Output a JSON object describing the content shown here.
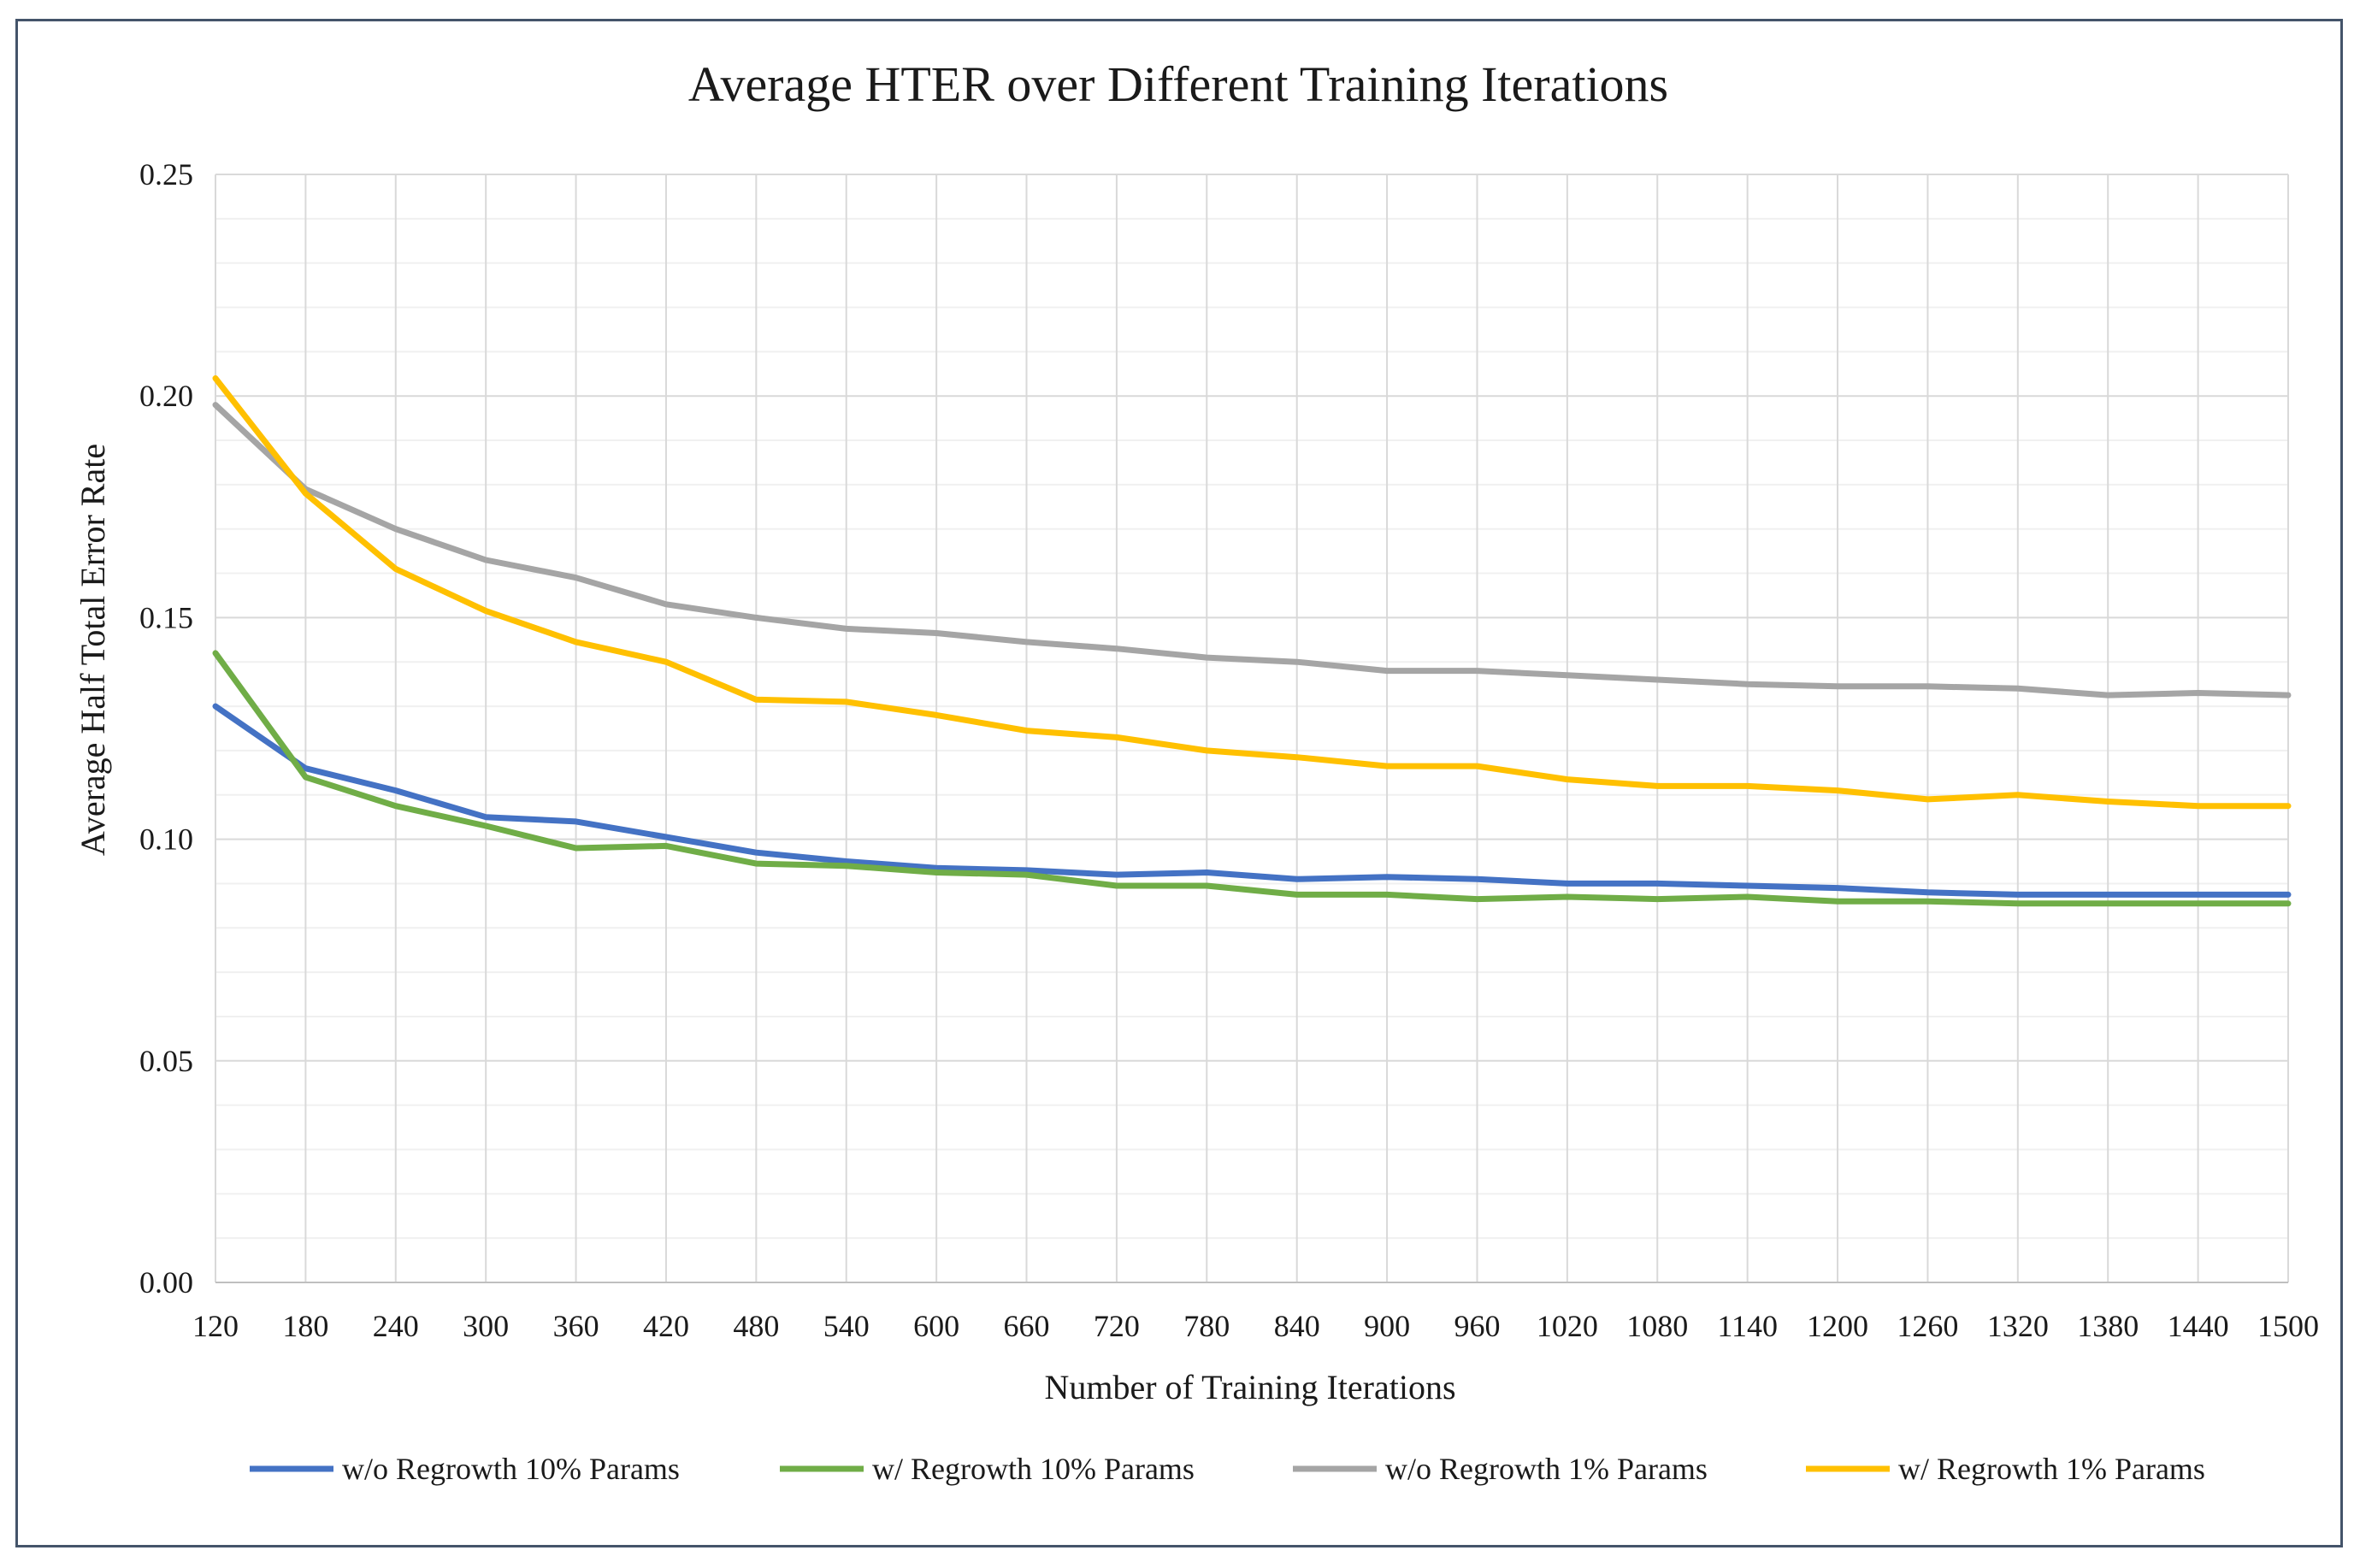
{
  "chart_data": {
    "type": "line",
    "title": "Average HTER over Different Training Iterations",
    "xlabel": "Number of Training Iterations",
    "ylabel": "Average Half Total Error Rate",
    "x": [
      120,
      180,
      240,
      300,
      360,
      420,
      480,
      540,
      600,
      660,
      720,
      780,
      840,
      900,
      960,
      1020,
      1080,
      1140,
      1200,
      1260,
      1320,
      1380,
      1440,
      1500
    ],
    "ylim": [
      0,
      0.25
    ],
    "yticks": [
      "0.00",
      "0.05",
      "0.10",
      "0.15",
      "0.20",
      "0.25"
    ],
    "grid": true,
    "legend_position": "bottom",
    "series": [
      {
        "name": "w/o Regrowth 10% Params",
        "color": "#4472c4",
        "values": [
          0.13,
          0.116,
          0.111,
          0.105,
          0.104,
          0.1005,
          0.097,
          0.095,
          0.0935,
          0.093,
          0.092,
          0.0925,
          0.091,
          0.0915,
          0.091,
          0.09,
          0.09,
          0.0895,
          0.089,
          0.088,
          0.0875,
          0.0875,
          0.0875,
          0.0875
        ]
      },
      {
        "name": "w/ Regrowth 10% Params",
        "color": "#70ad47",
        "values": [
          0.142,
          0.114,
          0.1075,
          0.103,
          0.098,
          0.0985,
          0.0945,
          0.094,
          0.0925,
          0.092,
          0.0895,
          0.0895,
          0.0875,
          0.0875,
          0.0865,
          0.087,
          0.0865,
          0.087,
          0.086,
          0.086,
          0.0855,
          0.0855,
          0.0855,
          0.0855
        ]
      },
      {
        "name": "w/o Regrowth 1% Params",
        "color": "#a5a5a5",
        "values": [
          0.198,
          0.179,
          0.17,
          0.163,
          0.159,
          0.153,
          0.15,
          0.1475,
          0.1465,
          0.1445,
          0.143,
          0.141,
          0.14,
          0.138,
          0.138,
          0.137,
          0.136,
          0.135,
          0.1345,
          0.1345,
          0.134,
          0.1325,
          0.133,
          0.1325
        ]
      },
      {
        "name": "w/ Regrowth 1% Params",
        "color": "#ffc000",
        "values": [
          0.204,
          0.178,
          0.161,
          0.1515,
          0.1445,
          0.14,
          0.1315,
          0.131,
          0.128,
          0.1245,
          0.123,
          0.12,
          0.1185,
          0.1165,
          0.1165,
          0.1135,
          0.112,
          0.112,
          0.111,
          0.109,
          0.11,
          0.1085,
          0.1075,
          0.1075
        ]
      }
    ]
  }
}
